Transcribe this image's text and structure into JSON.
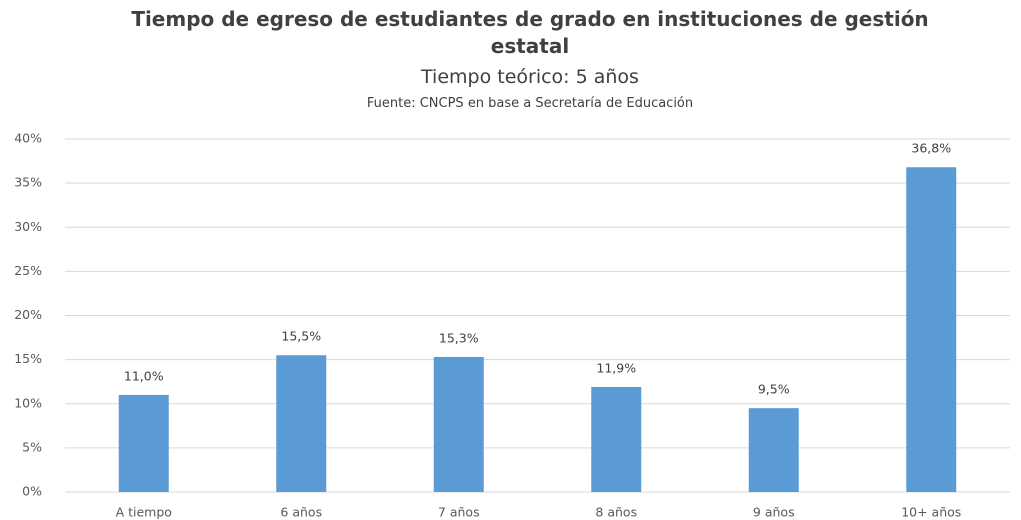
{
  "chart_data": {
    "type": "bar",
    "title": "Tiempo de egreso de estudiantes de grado en instituciones de gestión estatal",
    "subtitle": "Tiempo teórico: 5 años",
    "source": "Fuente: CNCPS en base a Secretaría de Educación",
    "categories": [
      "A tiempo",
      "6 años",
      "7 años",
      "8 años",
      "9 años",
      "10+ años"
    ],
    "values": [
      11.0,
      15.5,
      15.3,
      11.9,
      9.5,
      36.8
    ],
    "value_labels": [
      "11,0%",
      "15,5%",
      "15,3%",
      "11,9%",
      "9,5%",
      "36,8%"
    ],
    "color": "#5b9bd5",
    "ylim": [
      0,
      40
    ],
    "yticks": [
      {
        "value": 0,
        "label": "0%"
      },
      {
        "value": 5,
        "label": "5%"
      },
      {
        "value": 10,
        "label": "10%"
      },
      {
        "value": 15,
        "label": "15%"
      },
      {
        "value": 20,
        "label": "20%"
      },
      {
        "value": 25,
        "label": "25%"
      },
      {
        "value": 30,
        "label": "30%"
      },
      {
        "value": 35,
        "label": "35%"
      },
      {
        "value": 40,
        "label": "40%"
      }
    ],
    "grid": true
  }
}
